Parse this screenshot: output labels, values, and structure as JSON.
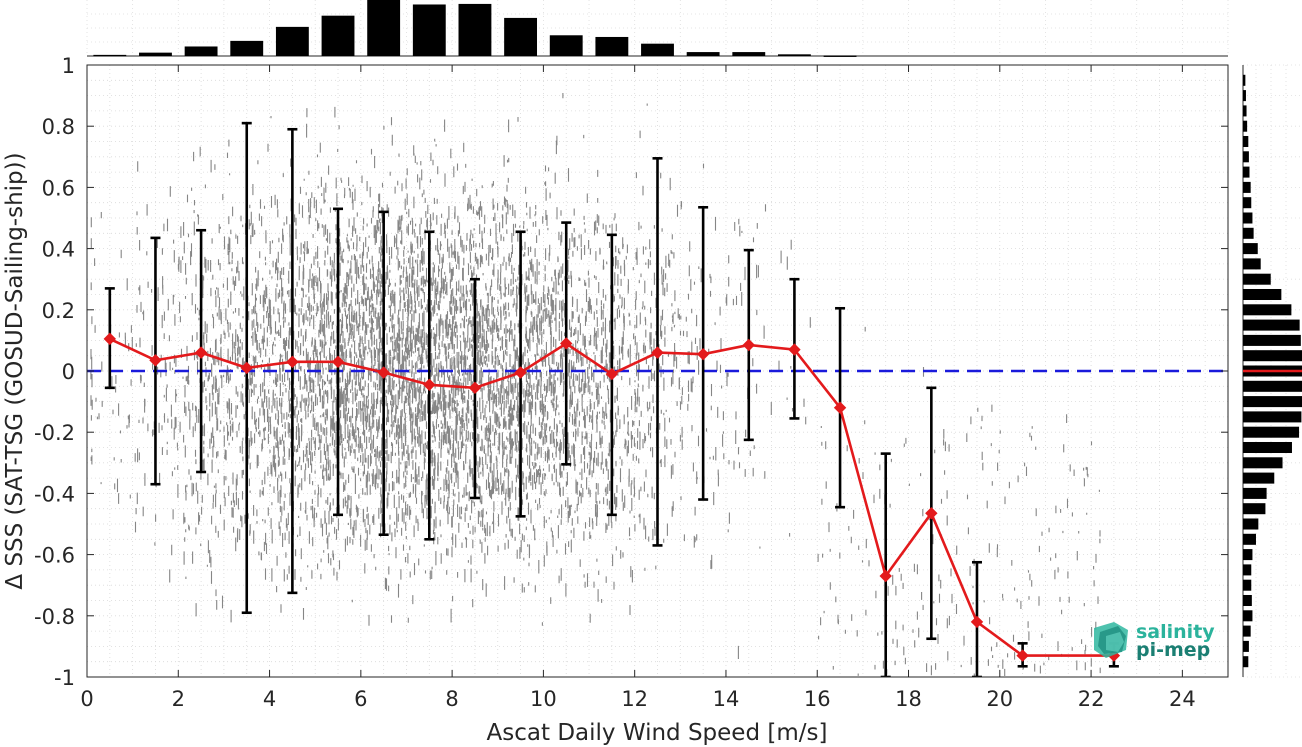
{
  "logo": {
    "line1": "salinity",
    "line2": "pi-mep"
  },
  "chart_data": {
    "type": "scatter",
    "xlabel": "Ascat Daily Wind Speed [m/s]",
    "ylabel": "Δ SSS (SAT-TSG (GOSUD-Sailing-ship))",
    "xlim": [
      0,
      25
    ],
    "ylim": [
      -1,
      1
    ],
    "xticks": [
      0,
      2,
      4,
      6,
      8,
      10,
      12,
      14,
      16,
      18,
      20,
      22,
      24
    ],
    "yticks": [
      -1,
      -0.8,
      -0.6,
      -0.4,
      -0.2,
      0,
      0.2,
      0.4,
      0.6,
      0.8,
      1
    ],
    "grid": true,
    "zero_line": {
      "y": 0,
      "color": "#1a1adb",
      "style": "dashed"
    },
    "scatter_color": "#808080",
    "mean_color": "#e31a1c",
    "errorbar_color": "#000000",
    "binned_stats": {
      "x": [
        0.5,
        1.5,
        2.5,
        3.5,
        4.5,
        5.5,
        6.5,
        7.5,
        8.5,
        9.5,
        10.5,
        11.5,
        12.5,
        13.5,
        14.5,
        15.5,
        16.5,
        17.5,
        18.5,
        19.5,
        20.5,
        22.5
      ],
      "mean": [
        0.105,
        0.035,
        0.06,
        0.01,
        0.03,
        0.03,
        -0.005,
        -0.045,
        -0.055,
        -0.005,
        0.09,
        -0.01,
        0.06,
        0.055,
        0.085,
        0.07,
        -0.12,
        -0.67,
        -0.465,
        -0.82,
        -0.93,
        -0.93
      ],
      "upper": [
        0.27,
        0.435,
        0.46,
        0.81,
        0.79,
        0.53,
        0.52,
        0.455,
        0.3,
        0.455,
        0.485,
        0.445,
        0.695,
        0.535,
        0.395,
        0.3,
        0.205,
        -0.27,
        -0.055,
        -0.625,
        -0.89,
        -0.89
      ],
      "lower": [
        -0.055,
        -0.37,
        -0.33,
        -0.79,
        -0.725,
        -0.47,
        -0.535,
        -0.55,
        -0.415,
        -0.475,
        -0.305,
        -0.47,
        -0.57,
        -0.42,
        -0.225,
        -0.155,
        -0.445,
        -1.0,
        -0.875,
        -1.0,
        -0.965,
        -0.965
      ]
    },
    "x_histogram": {
      "centers": [
        0.5,
        1.5,
        2.5,
        3.5,
        4.5,
        5.5,
        6.5,
        7.5,
        8.5,
        9.5,
        10.5,
        11.5,
        12.5,
        13.5,
        14.5,
        15.5,
        16.5
      ],
      "relative_heights": [
        0.02,
        0.06,
        0.17,
        0.27,
        0.52,
        0.72,
        1.0,
        0.92,
        0.93,
        0.68,
        0.37,
        0.34,
        0.22,
        0.07,
        0.07,
        0.03,
        0.01
      ]
    },
    "y_histogram": {
      "centers": [
        -0.95,
        -0.9,
        -0.85,
        -0.8,
        -0.75,
        -0.7,
        -0.65,
        -0.6,
        -0.55,
        -0.5,
        -0.45,
        -0.4,
        -0.35,
        -0.3,
        -0.25,
        -0.2,
        -0.15,
        -0.1,
        -0.05,
        0,
        0.05,
        0.1,
        0.15,
        0.2,
        0.25,
        0.3,
        0.35,
        0.4,
        0.45,
        0.5,
        0.55,
        0.6,
        0.65,
        0.7,
        0.75,
        0.8,
        0.85,
        0.9,
        0.95
      ],
      "relative_heights": [
        0.09,
        0.1,
        0.13,
        0.16,
        0.15,
        0.14,
        0.14,
        0.16,
        0.22,
        0.26,
        0.38,
        0.4,
        0.53,
        0.67,
        0.83,
        0.95,
        0.99,
        1.0,
        1.0,
        1.0,
        1.0,
        0.98,
        0.96,
        0.82,
        0.65,
        0.47,
        0.3,
        0.25,
        0.18,
        0.16,
        0.14,
        0.13,
        0.11,
        0.1,
        0.09,
        0.07,
        0.06,
        0.05,
        0.04
      ]
    }
  }
}
